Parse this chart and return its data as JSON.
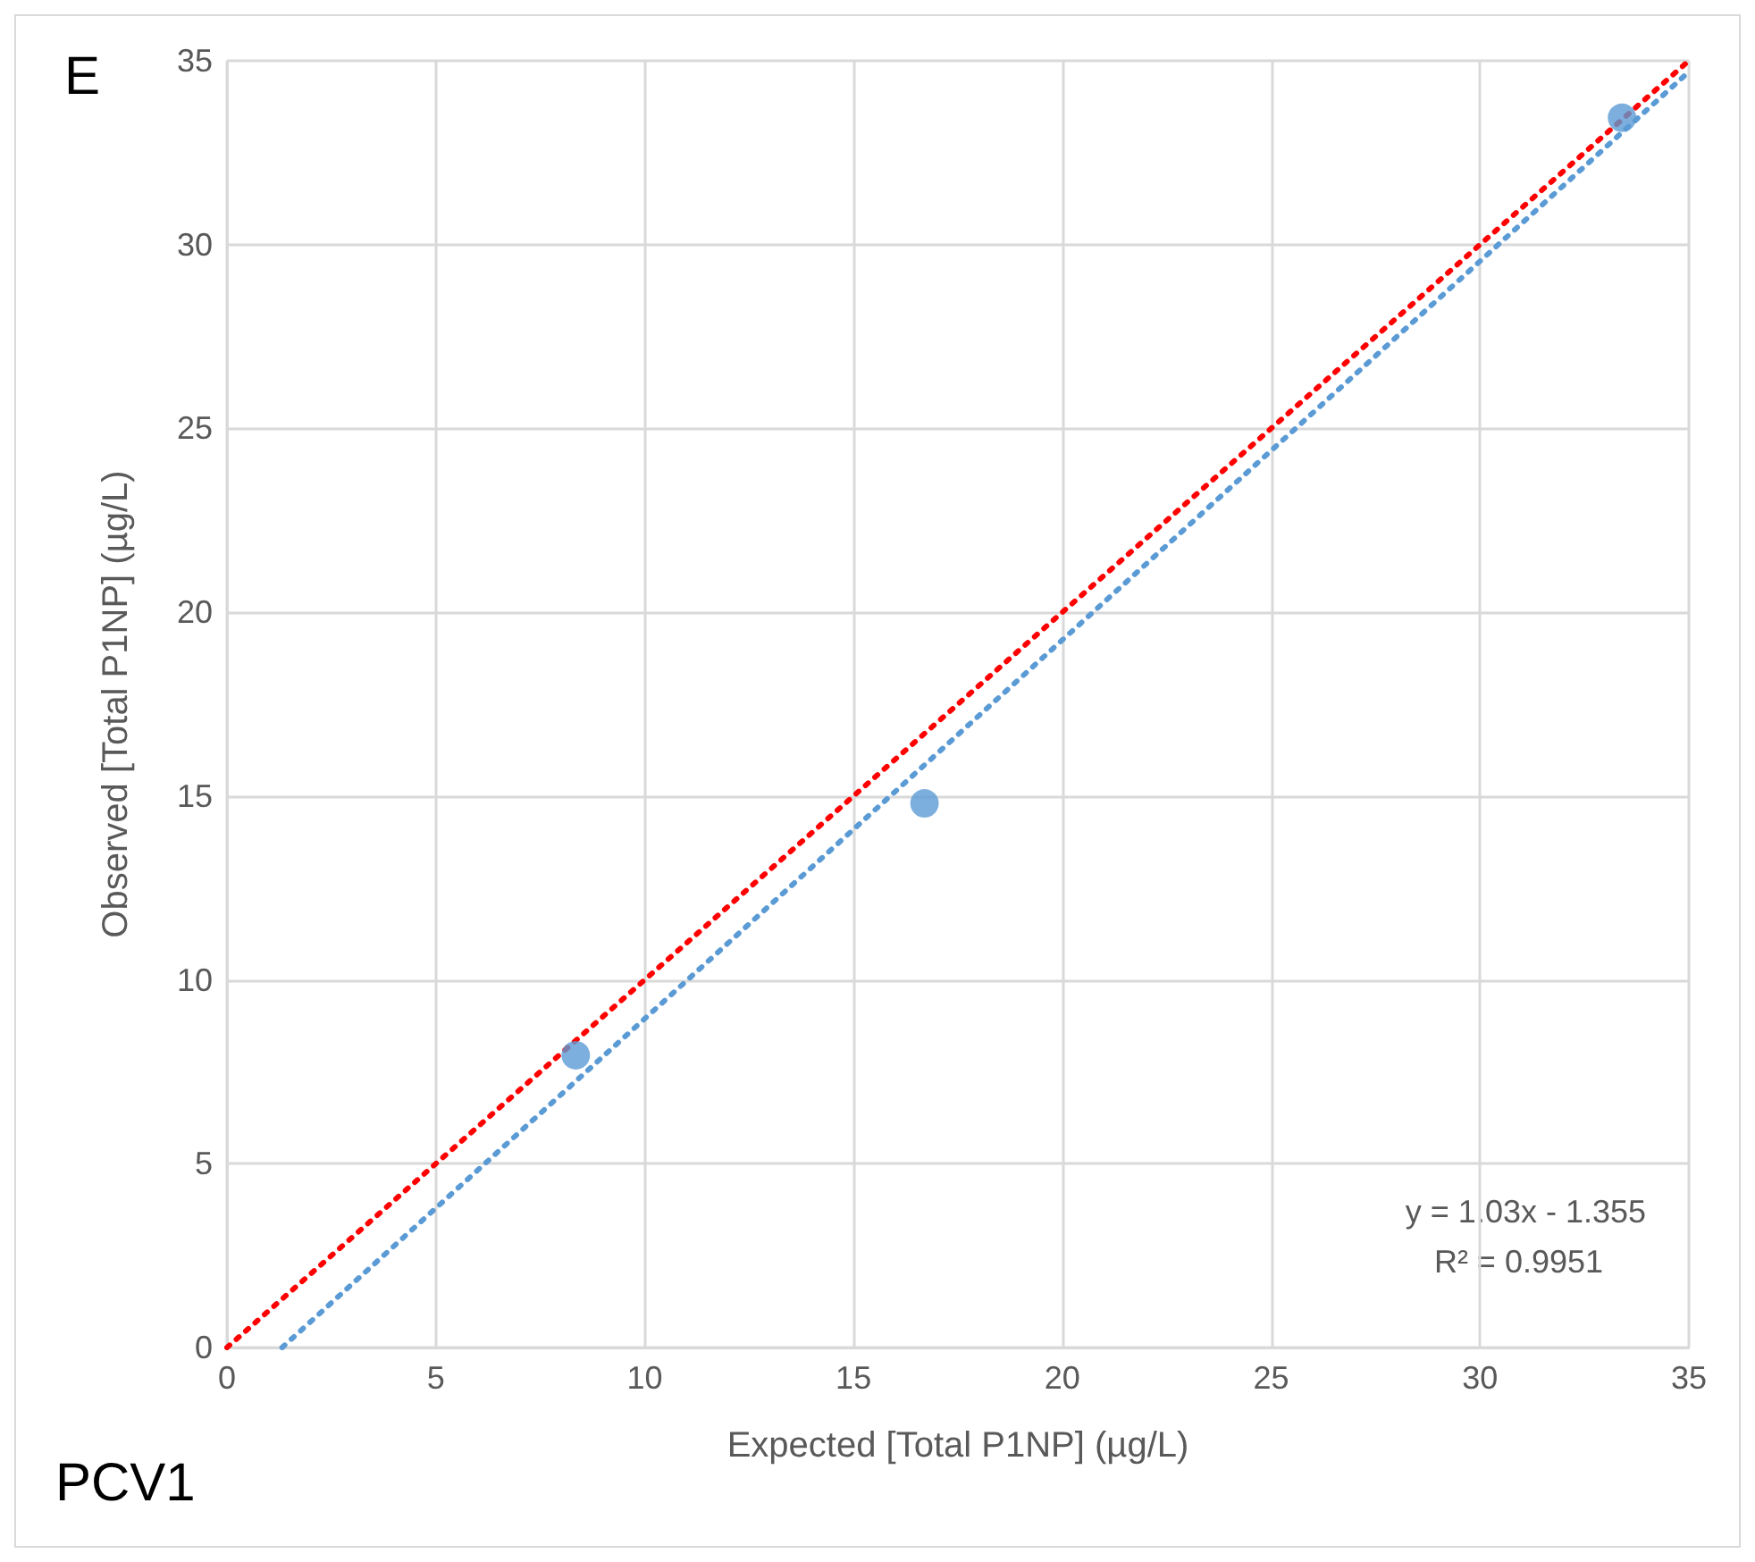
{
  "chart_data": {
    "type": "scatter",
    "title": "E",
    "xlabel": "Expected [Total P1NP] (µg/L)",
    "ylabel": "Observed [Total P1NP] (µg/L)",
    "x": [
      8.35,
      16.7,
      33.4
    ],
    "series": [
      {
        "color": "#5b9bd5",
        "values": [
          7.95,
          14.8,
          33.45
        ],
        "marker": "circle"
      },
      {
        "type": "line",
        "color": "#5b9bd5",
        "x": [
          1.32,
          35
        ],
        "values": [
          0,
          34.7
        ],
        "line_style": "dotted",
        "marker": "none"
      },
      {
        "type": "line",
        "color": "#ff0000",
        "x": [
          0,
          35
        ],
        "values": [
          0,
          35
        ],
        "line_style": "dotted",
        "marker": "none"
      }
    ],
    "xlim": [
      0,
      35
    ],
    "ylim": [
      0,
      35
    ],
    "xticks": [
      0,
      5,
      10,
      15,
      20,
      25,
      30,
      35
    ],
    "yticks": [
      0,
      5,
      10,
      15,
      20,
      25,
      30,
      35
    ],
    "grid": true,
    "annotations": [
      "PCV1",
      "y = 1.03x - 1.355",
      "R² = 0.9951"
    ]
  }
}
